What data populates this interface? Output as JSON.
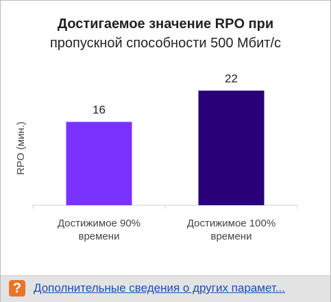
{
  "chart_data": {
    "type": "bar",
    "title": "Достигаемое значение RPO при",
    "subtitle": "пропускной способности 500 Мбит/с",
    "ylabel": "RPO (мин.)",
    "xlabel": "",
    "categories": [
      [
        "Достижимое 90%",
        "времени"
      ],
      [
        "Достижимое 100%",
        "времени"
      ]
    ],
    "values": [
      16,
      22
    ],
    "ylim": [
      0,
      22
    ],
    "bar_colors": [
      "#7a33ff",
      "#2a0078"
    ],
    "data_labels": [
      "16",
      "22"
    ],
    "grid": false
  },
  "footer": {
    "icon": "question-icon",
    "icon_glyph": "?",
    "link_text": "Дополнительные сведения о других парамет..."
  }
}
